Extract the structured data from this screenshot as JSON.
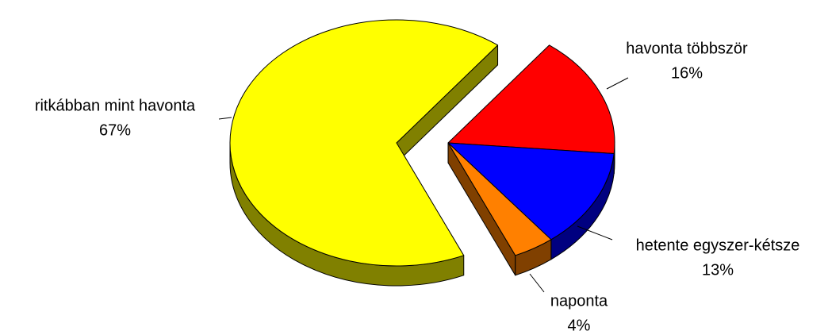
{
  "chart_data": {
    "type": "pie",
    "categories": [
      "havonta többször",
      "hetente egyszer-kétsze",
      "naponta",
      "ritkábban mint havonta"
    ],
    "values": [
      16,
      13,
      4,
      67
    ],
    "value_labels": [
      "16%",
      "13%",
      "4%",
      "67%"
    ],
    "colors": [
      "#ff0000",
      "#0000ff",
      "#ff8000",
      "#ffff00"
    ],
    "side_colors": [
      "#800000",
      "#000080",
      "#804000",
      "#808000"
    ]
  }
}
